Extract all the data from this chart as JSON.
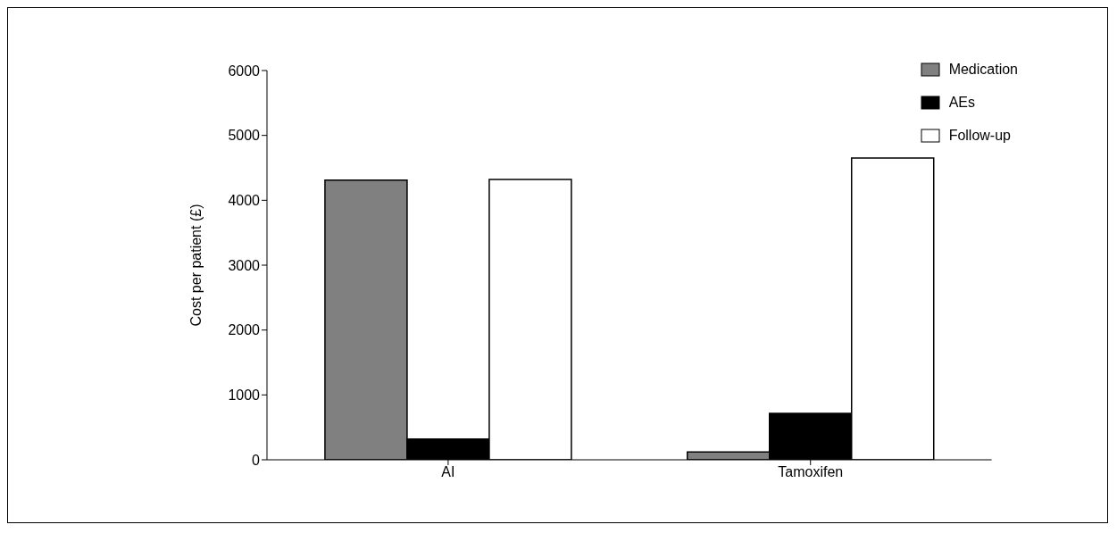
{
  "chart_data": {
    "type": "bar",
    "ylabel": "Cost per patient (£)",
    "categories": [
      "AI",
      "Tamoxifen"
    ],
    "series": [
      {
        "name": "Medication",
        "color": "#808080",
        "values": [
          4310,
          120
        ]
      },
      {
        "name": "AEs",
        "color": "#000000",
        "values": [
          320,
          715
        ]
      },
      {
        "name": "Follow-up",
        "color": "#ffffff",
        "values": [
          4320,
          4650
        ]
      }
    ],
    "ylim": [
      0,
      6000
    ],
    "yticks": [
      0,
      1000,
      2000,
      3000,
      4000,
      5000,
      6000
    ],
    "grid": false,
    "legend": "top right"
  }
}
